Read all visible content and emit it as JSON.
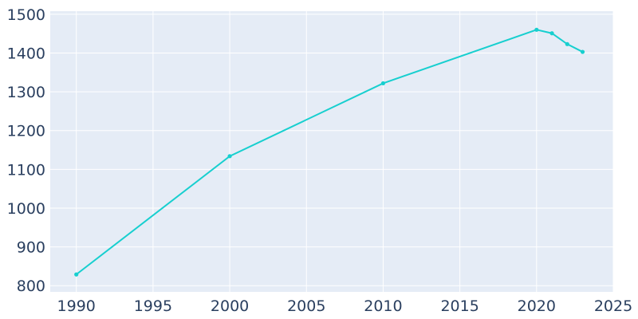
{
  "chart_data": {
    "type": "line",
    "title": "",
    "xlabel": "",
    "ylabel": "",
    "x": [
      1990,
      2000,
      2010,
      2020,
      2021,
      2022,
      2023
    ],
    "series": [
      {
        "values": [
          829,
          1134,
          1322,
          1460,
          1451,
          1423,
          1403
        ]
      }
    ],
    "xlim": [
      1988.3,
      2025
    ],
    "ylim": [
      784,
      1508
    ],
    "x_ticks": [
      1990,
      1995,
      2000,
      2005,
      2010,
      2015,
      2020,
      2025
    ],
    "y_ticks": [
      800,
      900,
      1000,
      1100,
      1200,
      1300,
      1400,
      1500
    ],
    "x_tick_labels": [
      "1990",
      "1995",
      "2000",
      "2005",
      "2010",
      "2015",
      "2020",
      "2025"
    ],
    "y_tick_labels": [
      "800",
      "900",
      "1000",
      "1100",
      "1200",
      "1300",
      "1400",
      "1500"
    ],
    "grid": true,
    "colors": {
      "line": "#17cfcf",
      "plot_bg": "#e5ecf6",
      "grid": "#ffffff",
      "text": "#2a3f5f"
    }
  }
}
